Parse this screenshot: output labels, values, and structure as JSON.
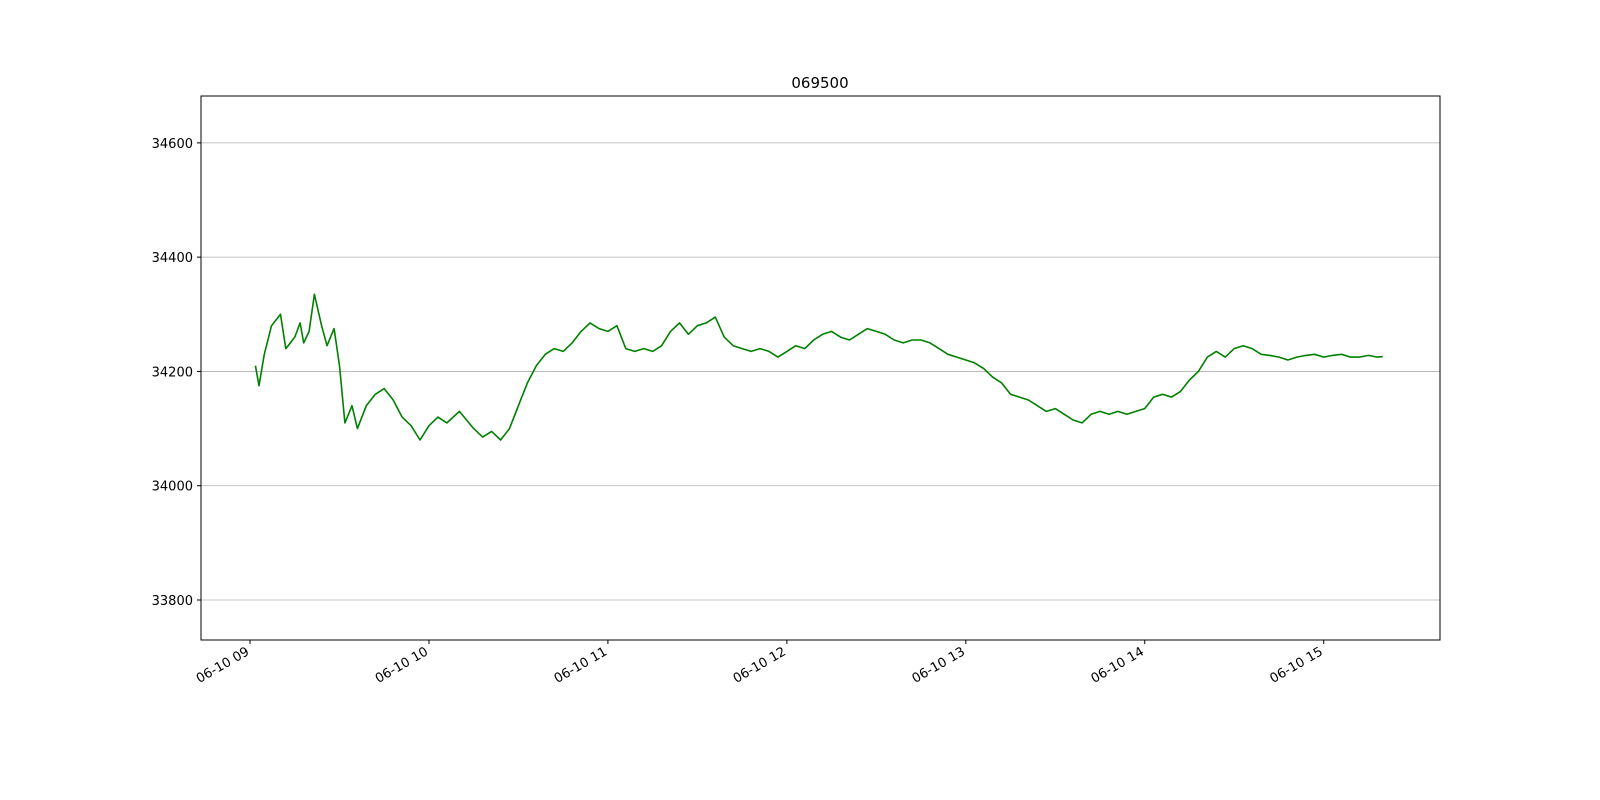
{
  "chart_data": {
    "type": "line",
    "title": "069500",
    "x": [
      9.03,
      9.05,
      9.08,
      9.12,
      9.17,
      9.2,
      9.25,
      9.28,
      9.3,
      9.33,
      9.36,
      9.4,
      9.43,
      9.47,
      9.5,
      9.53,
      9.57,
      9.6,
      9.65,
      9.7,
      9.75,
      9.8,
      9.85,
      9.9,
      9.95,
      10.0,
      10.05,
      10.1,
      10.17,
      10.25,
      10.3,
      10.35,
      10.4,
      10.45,
      10.5,
      10.55,
      10.6,
      10.65,
      10.7,
      10.75,
      10.8,
      10.85,
      10.9,
      10.95,
      11.0,
      11.05,
      11.1,
      11.15,
      11.2,
      11.25,
      11.3,
      11.35,
      11.4,
      11.45,
      11.5,
      11.55,
      11.6,
      11.65,
      11.7,
      11.75,
      11.8,
      11.85,
      11.9,
      11.95,
      12.0,
      12.05,
      12.1,
      12.15,
      12.2,
      12.25,
      12.3,
      12.35,
      12.4,
      12.45,
      12.5,
      12.55,
      12.6,
      12.65,
      12.7,
      12.75,
      12.8,
      12.85,
      12.9,
      12.95,
      13.0,
      13.05,
      13.1,
      13.15,
      13.2,
      13.25,
      13.3,
      13.35,
      13.4,
      13.45,
      13.5,
      13.55,
      13.6,
      13.65,
      13.7,
      13.75,
      13.8,
      13.85,
      13.9,
      13.95,
      14.0,
      14.05,
      14.1,
      14.15,
      14.2,
      14.25,
      14.3,
      14.35,
      14.4,
      14.45,
      14.5,
      14.55,
      14.6,
      14.65,
      14.7,
      14.75,
      14.8,
      14.85,
      14.9,
      14.95,
      15.0,
      15.05,
      15.1,
      15.15,
      15.2,
      15.25,
      15.3,
      15.33
    ],
    "series": [
      {
        "name": "069500",
        "color": "#008000",
        "values": [
          34210,
          34175,
          34230,
          34280,
          34300,
          34240,
          34260,
          34285,
          34250,
          34270,
          34335,
          34280,
          34245,
          34275,
          34210,
          34110,
          34140,
          34100,
          34140,
          34160,
          34170,
          34150,
          34120,
          34105,
          34080,
          34105,
          34120,
          34110,
          34130,
          34100,
          34085,
          34095,
          34080,
          34100,
          34140,
          34180,
          34210,
          34230,
          34240,
          34235,
          34250,
          34270,
          34285,
          34275,
          34270,
          34280,
          34240,
          34235,
          34240,
          34235,
          34245,
          34270,
          34285,
          34265,
          34280,
          34285,
          34295,
          34260,
          34245,
          34240,
          34235,
          34240,
          34235,
          34225,
          34235,
          34245,
          34240,
          34255,
          34265,
          34270,
          34260,
          34255,
          34265,
          34275,
          34270,
          34265,
          34255,
          34250,
          34255,
          34255,
          34250,
          34240,
          34230,
          34225,
          34220,
          34215,
          34205,
          34190,
          34180,
          34160,
          34155,
          34150,
          34140,
          34130,
          34135,
          34125,
          34115,
          34110,
          34125,
          34130,
          34125,
          34130,
          34125,
          34130,
          34135,
          34155,
          34160,
          34155,
          34165,
          34185,
          34200,
          34225,
          34235,
          34225,
          34240,
          34245,
          34240,
          34230,
          34228,
          34225,
          34220,
          34225,
          34228,
          34230,
          34225,
          34228,
          34230,
          34225,
          34225,
          34228,
          34225,
          34226
        ]
      }
    ],
    "xlim": [
      8.726,
      15.65
    ],
    "xticks": [
      {
        "value": 9,
        "label": "06-10 09"
      },
      {
        "value": 10,
        "label": "06-10 10"
      },
      {
        "value": 11,
        "label": "06-10 11"
      },
      {
        "value": 12,
        "label": "06-10 12"
      },
      {
        "value": 13,
        "label": "06-10 13"
      },
      {
        "value": 14,
        "label": "06-10 14"
      },
      {
        "value": 15,
        "label": "06-10 15"
      }
    ],
    "ylim": [
      33730,
      34682
    ],
    "yticks": [
      33800,
      34000,
      34200,
      34400,
      34600
    ],
    "grid": "y"
  }
}
